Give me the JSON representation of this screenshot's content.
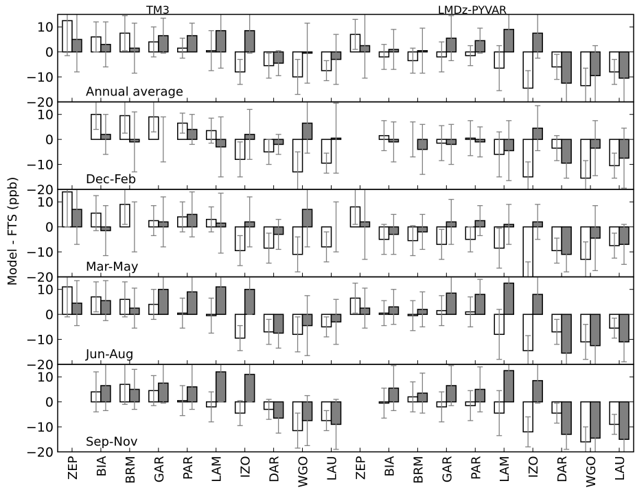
{
  "chart_data": {
    "type": "bar",
    "ylabel": "Model - FTS (ppb)",
    "ylim": [
      -20,
      15
    ],
    "yticks": [
      -20,
      -10,
      0,
      10
    ],
    "categories": [
      "ZEP",
      "BIA",
      "BRM",
      "GAR",
      "PAR",
      "LAM",
      "IZO",
      "DAR",
      "WGO",
      "LAU",
      "ZEP",
      "BIA",
      "BRM",
      "GAR",
      "PAR",
      "LAM",
      "IZO",
      "DAR",
      "WGO",
      "LAU"
    ],
    "models": [
      "TM3",
      "LMDz-PYVAR"
    ],
    "colors": {
      "white_bar_fill": "#ffffff",
      "gray_bar_fill": "#808080",
      "bar_edge": "#000000",
      "errorbar": "#808080"
    },
    "panels": [
      {
        "label": "Annual average",
        "white_values": [
          12.5,
          6,
          7.5,
          4,
          1.5,
          0.5,
          -8,
          -5.5,
          -10,
          -7.5,
          7,
          -2,
          -3.5,
          -2,
          -1.5,
          -6.5,
          -14.5,
          -6,
          -13.5,
          -8
        ],
        "white_err": [
          14,
          6,
          7,
          6,
          4,
          8,
          5,
          5,
          7,
          4,
          6,
          5,
          5,
          6,
          4,
          9,
          7,
          5,
          7,
          5
        ],
        "gray_values": [
          5,
          3,
          1.5,
          6.5,
          6.5,
          8.5,
          8.5,
          -4.5,
          -0.5,
          -3,
          2.5,
          1,
          0.5,
          5.5,
          4.5,
          9,
          7.5,
          -12.5,
          -9.5,
          -10.5
        ],
        "gray_err": [
          13,
          9,
          10,
          7,
          5,
          15,
          9,
          5,
          12,
          10,
          13,
          8,
          9,
          9,
          5,
          7,
          10,
          8,
          12,
          10
        ]
      },
      {
        "label": "Dec-Feb",
        "white_values": [
          null,
          10,
          9.5,
          9,
          6.5,
          3.5,
          -8,
          -5,
          -13,
          -9.5,
          null,
          1.5,
          0,
          -1.5,
          0.5,
          -6,
          -15,
          -3.5,
          -15.5,
          -10.5
        ],
        "white_err": [
          null,
          6,
          7,
          6,
          4,
          5,
          7,
          5,
          8,
          4,
          null,
          6,
          7,
          7,
          7,
          9,
          6,
          5,
          7,
          5
        ],
        "gray_values": [
          null,
          2,
          -1,
          0,
          4,
          -3,
          2,
          -2,
          6.5,
          0.5,
          null,
          -1,
          -4,
          -2,
          -1,
          -4.5,
          4.5,
          -9.5,
          -3.5,
          -7.5
        ],
        "gray_err": [
          null,
          8,
          12,
          9,
          6,
          12,
          10,
          4,
          12,
          14,
          null,
          8,
          10,
          8,
          6,
          12,
          9,
          6,
          11,
          12
        ]
      },
      {
        "label": "Mar-May",
        "white_values": [
          14,
          5.5,
          9,
          2.5,
          4,
          3,
          -9.5,
          -8.5,
          -11,
          -8,
          8,
          -5,
          -5.5,
          -7,
          -5,
          -8.5,
          -21,
          -9.5,
          -13,
          -7.5
        ],
        "white_err": [
          14,
          7,
          8,
          6,
          6,
          5,
          6,
          6,
          7,
          6,
          7,
          6,
          6,
          6,
          5,
          8,
          7,
          5,
          7,
          5
        ],
        "gray_values": [
          7,
          -1.5,
          0,
          2,
          5,
          1.5,
          2,
          -3,
          7,
          0,
          2,
          -3,
          -2,
          2,
          2.5,
          1,
          2,
          -11,
          -4.5,
          -7
        ],
        "gray_err": [
          14,
          10,
          10,
          10,
          9,
          12,
          10,
          6,
          15,
          10,
          15,
          8,
          7,
          9,
          6,
          8,
          7,
          7,
          13,
          8
        ]
      },
      {
        "label": "Jun-Aug",
        "white_values": [
          11,
          7,
          6,
          4,
          0.5,
          -0.5,
          -9.5,
          -7,
          -8,
          -5,
          6.5,
          0.5,
          -0.5,
          1.5,
          1,
          -8,
          -14.5,
          -7,
          -11,
          -5.5
        ],
        "white_err": [
          12,
          6,
          7,
          6,
          6,
          7,
          5,
          5,
          7,
          4,
          6,
          5,
          6,
          6,
          6,
          10,
          6,
          5,
          7,
          4
        ],
        "gray_values": [
          4.5,
          5.5,
          2.5,
          10,
          9,
          11,
          10,
          -7.5,
          -4.5,
          -3,
          2.5,
          3,
          2,
          8.5,
          8,
          12.5,
          8,
          -15.5,
          -12.5,
          -11
        ],
        "gray_err": [
          9,
          8,
          8,
          7,
          7,
          8,
          10,
          6,
          12,
          9,
          8,
          7,
          7,
          7,
          6,
          8,
          7,
          6,
          10,
          8
        ]
      },
      {
        "label": "Sep-Nov",
        "white_values": [
          null,
          4,
          7,
          4.5,
          0.5,
          -2,
          -4.5,
          -3,
          -11.5,
          -7.5,
          null,
          -0.5,
          2,
          -2,
          -1.5,
          -4.5,
          -12,
          -4.5,
          -16,
          -9
        ],
        "white_err": [
          null,
          8,
          8,
          6,
          6,
          6,
          5,
          4,
          7,
          4,
          null,
          6,
          6,
          6,
          6,
          9,
          6,
          4,
          6,
          4
        ],
        "gray_values": [
          null,
          6.5,
          5,
          7.5,
          6,
          12,
          11,
          -6.5,
          -7.5,
          -9,
          null,
          5.5,
          3.5,
          6.5,
          5,
          12.5,
          8.5,
          -13,
          -14.5,
          -15
        ],
        "gray_err": [
          null,
          10,
          8,
          8,
          9,
          12,
          11,
          6,
          10,
          10,
          null,
          9,
          8,
          8,
          9,
          10,
          9,
          6,
          10,
          8
        ]
      }
    ]
  }
}
